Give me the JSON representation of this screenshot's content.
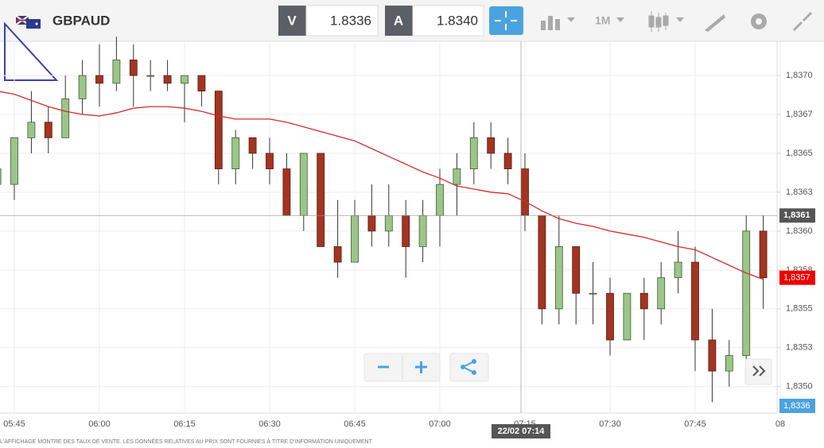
{
  "header": {
    "symbol": "GBPAUD",
    "sell_label": "V",
    "sell_price": "1.8336",
    "buy_label": "A",
    "buy_price": "1.8340",
    "timeframe": "1M"
  },
  "chart_data": {
    "type": "candlestick",
    "categories": [
      null,
      "05:45",
      null,
      null,
      null,
      null,
      "06:00",
      null,
      null,
      null,
      null,
      "06:15",
      null,
      null,
      null,
      null,
      "06:30",
      null,
      null,
      null,
      null,
      "06:45",
      null,
      null,
      null,
      null,
      "07:00",
      null,
      null,
      null,
      null,
      "07:15",
      null,
      null,
      null,
      null,
      "07:30",
      null,
      null,
      null,
      null,
      "07:45",
      null,
      null,
      null,
      null,
      "08"
    ],
    "open": [
      1.8363,
      1.8363,
      1.8366,
      1.8367,
      1.8366,
      1.83685,
      1.837,
      1.83695,
      1.8371,
      1.837,
      1.837,
      1.83695,
      1.837,
      1.8369,
      1.8364,
      1.8366,
      1.8365,
      1.8364,
      1.8361,
      1.8365,
      1.8359,
      1.8358,
      1.8361,
      1.836,
      1.8361,
      1.8359,
      1.8361,
      1.8363,
      1.8364,
      1.8366,
      1.8365,
      1.8364,
      1.8361,
      1.8355,
      1.8359,
      1.8356,
      1.8356,
      1.8353,
      1.8356,
      1.8355,
      1.8357,
      1.8358,
      1.8353,
      1.8351,
      1.8352,
      1.836,
      null
    ],
    "high": [
      1.8365,
      1.8366,
      1.8369,
      1.8368,
      1.837,
      1.8371,
      1.8372,
      1.83725,
      1.8372,
      1.8371,
      1.8371,
      1.837,
      1.837,
      1.8369,
      1.83665,
      1.8366,
      1.8366,
      1.8365,
      1.8365,
      1.8365,
      1.8362,
      1.8362,
      1.8363,
      1.8363,
      1.8362,
      1.8362,
      1.8364,
      1.8365,
      1.8367,
      1.8367,
      1.8366,
      1.8365,
      1.8361,
      1.8361,
      1.8359,
      1.8358,
      1.8357,
      1.8356,
      1.8357,
      1.8358,
      1.836,
      1.8359,
      1.8355,
      1.8353,
      1.8361,
      1.8361,
      null
    ],
    "low": [
      1.8362,
      1.8362,
      1.8365,
      1.8365,
      1.8366,
      1.83675,
      1.8368,
      1.8369,
      1.8368,
      1.8369,
      1.8369,
      1.8367,
      1.8368,
      1.8363,
      1.8363,
      1.8364,
      1.8363,
      1.8361,
      1.836,
      1.8359,
      1.8357,
      1.8358,
      1.8359,
      1.8359,
      1.8357,
      1.8358,
      1.8359,
      1.8361,
      1.8363,
      1.8364,
      1.8363,
      1.836,
      1.8354,
      1.8354,
      1.8354,
      1.8354,
      1.8352,
      1.8353,
      1.8353,
      1.8354,
      1.8356,
      1.8351,
      1.8349,
      1.835,
      1.8351,
      1.8355,
      null
    ],
    "close": [
      1.8364,
      1.8366,
      1.8367,
      1.8366,
      1.83685,
      1.837,
      1.83695,
      1.8371,
      1.837,
      1.837,
      1.83695,
      1.837,
      1.8369,
      1.8364,
      1.8366,
      1.8365,
      1.8364,
      1.8361,
      1.8365,
      1.8359,
      1.8358,
      1.8361,
      1.836,
      1.8361,
      1.8359,
      1.8361,
      1.8363,
      1.8364,
      1.8366,
      1.8365,
      1.8364,
      1.8361,
      1.8355,
      1.8359,
      1.8356,
      1.8356,
      1.8353,
      1.8356,
      1.8355,
      1.8357,
      1.8358,
      1.8353,
      1.8351,
      1.8352,
      1.836,
      1.8357,
      null
    ],
    "up_color": "#9cc58a",
    "down_color": "#a33420",
    "moving_average": {
      "color": "#d42b2b",
      "values": [
        1.8369,
        1.83688,
        1.83684,
        1.8368,
        1.83677,
        1.83675,
        1.83674,
        1.83676,
        1.83679,
        1.8368,
        1.8368,
        1.83679,
        1.83677,
        1.83674,
        1.83672,
        1.83672,
        1.83672,
        1.8367,
        1.83667,
        1.83664,
        1.83661,
        1.83658,
        1.83653,
        1.83648,
        1.83643,
        1.83638,
        1.83634,
        1.83629,
        1.83627,
        1.83625,
        1.83624,
        1.83619,
        1.83613,
        1.83608,
        1.83605,
        1.83603,
        1.836,
        1.83598,
        1.83596,
        1.83593,
        1.8359,
        1.83588,
        1.83583,
        1.83578,
        1.83573,
        1.83569,
        null
      ]
    },
    "ylim": [
      1.83483,
      1.83722
    ],
    "yticks": [
      {
        "value": 1.837,
        "label": "1,8370"
      },
      {
        "value": 1.83675,
        "label": "1,8367"
      },
      {
        "value": 1.8365,
        "label": "1,8365"
      },
      {
        "value": 1.83625,
        "label": "1,8363"
      },
      {
        "value": 1.836,
        "label": "1,8360"
      },
      {
        "value": 1.83575,
        "label": "1,8358"
      },
      {
        "value": 1.8355,
        "label": "1,8355"
      },
      {
        "value": 1.83525,
        "label": "1,8353"
      },
      {
        "value": 1.835,
        "label": "1,8350"
      }
    ],
    "grid": true,
    "crosshair": {
      "value": 1.8361,
      "label": "1,8361",
      "time_label": "22/02 07:14"
    },
    "last_price": {
      "value": 1.8357,
      "label": "1,8357"
    },
    "bid_marker": "1,8336"
  },
  "footer": {
    "disclaimer": "L'AFFICHAGE MONTRE DES TAUX DE VENTE. LES DONNÉES RELATIVES AU PRIX SONT FOURNIES À TITRE D'INFORMATION UNIQUEMENT"
  }
}
